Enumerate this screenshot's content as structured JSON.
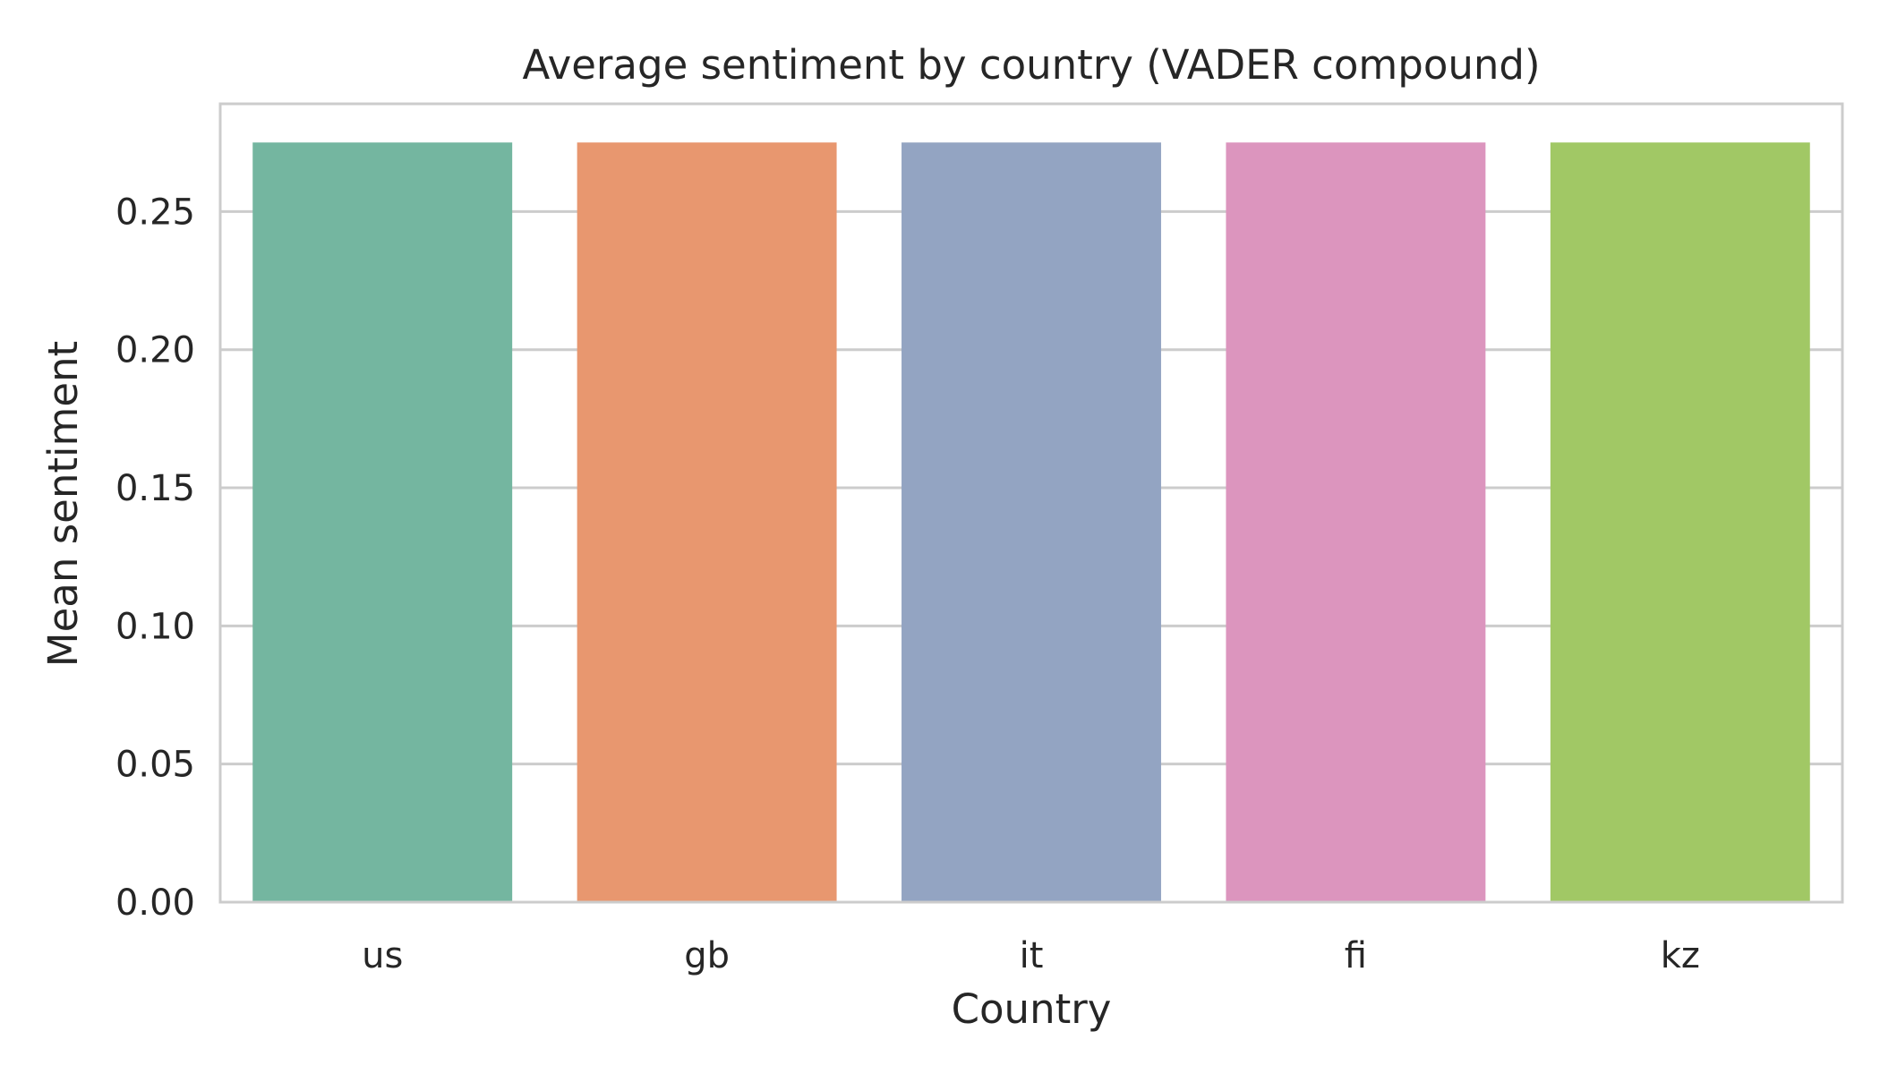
{
  "chart_data": {
    "type": "bar",
    "title": "Average sentiment by country (VADER compound)",
    "xlabel": "Country",
    "ylabel": "Mean sentiment",
    "categories": [
      "us",
      "gb",
      "it",
      "fi",
      "kz"
    ],
    "values": [
      0.275,
      0.275,
      0.275,
      0.275,
      0.275
    ],
    "colors": [
      "#74b6a0",
      "#e8976f",
      "#93a4c2",
      "#dc95be",
      "#a1c865"
    ],
    "ylim": [
      0,
      0.289
    ],
    "yticks": [
      0.0,
      0.05,
      0.1,
      0.15,
      0.2,
      0.25
    ],
    "ytick_labels": [
      "0.00",
      "0.05",
      "0.10",
      "0.15",
      "0.20",
      "0.25"
    ],
    "grid": "horizontal",
    "legend": "none"
  }
}
